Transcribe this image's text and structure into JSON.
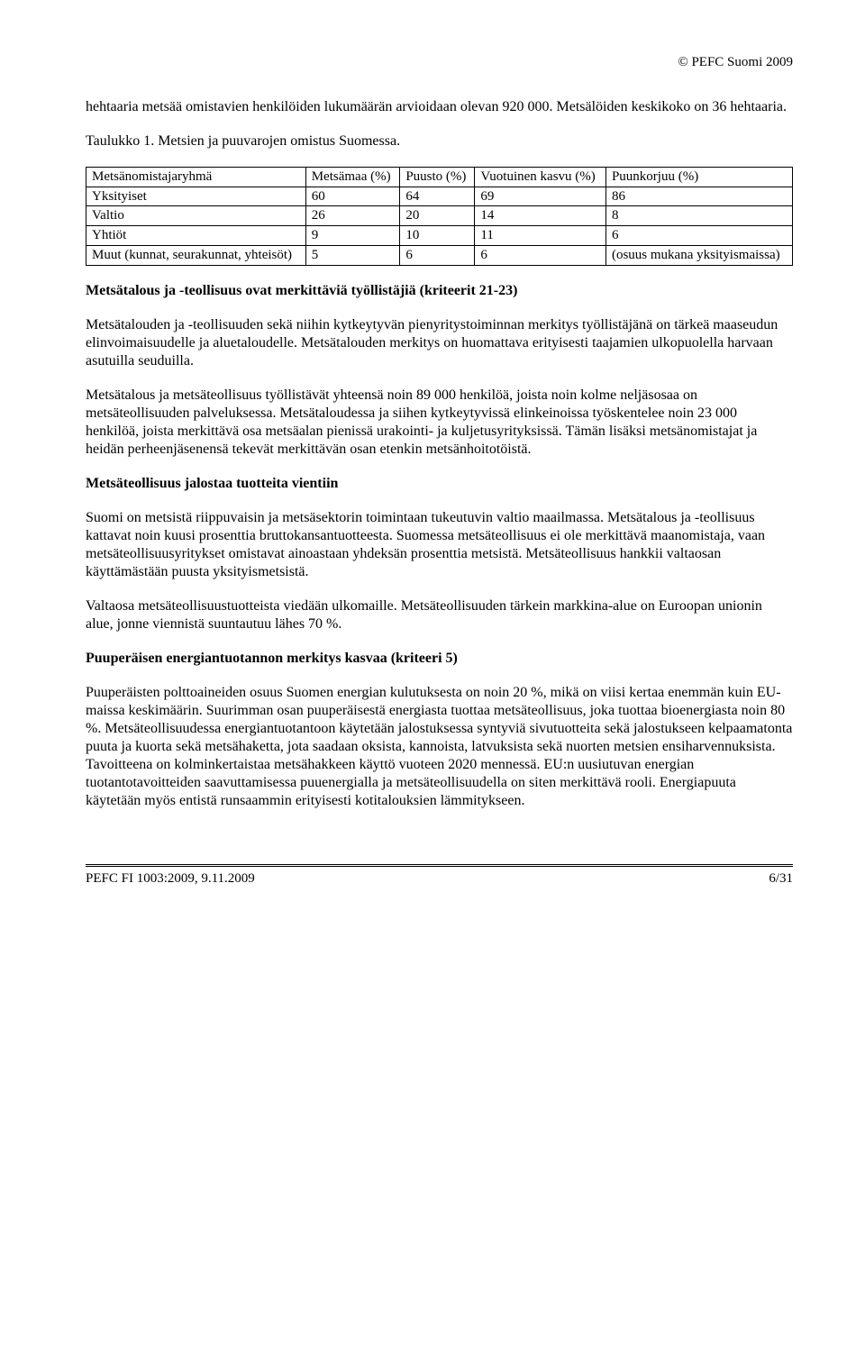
{
  "copyright": "© PEFC Suomi 2009",
  "p1": "hehtaaria metsää omistavien henkilöiden lukumäärän arvioidaan olevan 920 000. Metsälöiden keskikoko on 36 hehtaaria.",
  "tableCaption": "Taulukko 1. Metsien ja puuvarojen omistus Suomessa.",
  "table": {
    "headers": [
      "Metsänomistajaryhmä",
      "Metsämaa (%)",
      "Puusto (%)",
      "Vuotuinen kasvu  (%)",
      "Puunkorjuu (%)"
    ],
    "rows": [
      [
        "Yksityiset",
        "60",
        "64",
        "69",
        "86"
      ],
      [
        "Valtio",
        "26",
        "20",
        "14",
        "8"
      ],
      [
        "Yhtiöt",
        "9",
        "10",
        "11",
        "6"
      ],
      [
        "Muut (kunnat, seurakunnat, yhteisöt)",
        "5",
        "6",
        "6",
        "(osuus mukana yksityismaissa)"
      ]
    ]
  },
  "h1": "Metsätalous ja -teollisuus ovat merkittäviä työllistäjiä (kriteerit 21-23)",
  "p2": "Metsätalouden ja -teollisuuden sekä niihin kytkeytyvän pienyritystoiminnan merkitys työllistäjänä on tärkeä maaseudun elinvoimaisuudelle ja aluetaloudelle. Metsätalouden merkitys on huomattava erityisesti taajamien ulkopuolella harvaan asutuilla seuduilla.",
  "p3": "Metsätalous ja metsäteollisuus työllistävät yhteensä noin 89 000 henkilöä, joista noin kolme neljäsosaa on metsäteollisuuden palveluksessa. Metsätaloudessa ja siihen kytkeytyvissä elinkeinoissa työskentelee noin 23 000 henkilöä, joista merkittävä osa metsäalan pienissä urakointi- ja kuljetusyrityksissä. Tämän lisäksi metsänomistajat ja heidän perheenjäsenensä tekevät merkittävän osan etenkin metsänhoitotöistä.",
  "h2": "Metsäteollisuus jalostaa tuotteita vientiin",
  "p4": "Suomi on metsistä riippuvaisin ja metsäsektorin toimintaan tukeutuvin valtio maailmassa. Metsätalous ja -teollisuus kattavat noin kuusi prosenttia bruttokansantuotteesta. Suomessa metsäteollisuus ei ole merkittävä maanomistaja, vaan metsäteollisuusyritykset omistavat ainoastaan yhdeksän prosenttia metsistä. Metsäteollisuus hankkii valtaosan käyttämästään puusta yksityismetsistä.",
  "p5": "Valtaosa metsäteollisuustuotteista viedään ulkomaille. Metsäteollisuuden tärkein markkina-alue on Euroopan unionin alue, jonne viennistä suuntautuu lähes 70 %.",
  "h3": "Puuperäisen energiantuotannon merkitys kasvaa (kriteeri 5)",
  "p6": "Puuperäisten polttoaineiden osuus Suomen energian kulutuksesta on noin 20 %, mikä on viisi kertaa enemmän kuin EU-maissa keskimäärin. Suurimman osan puuperäisestä energiasta tuottaa metsäteollisuus, joka tuottaa bioenergiasta noin 80 %. Metsäteollisuudessa energiantuotantoon käytetään jalostuksessa syntyviä sivutuotteita sekä jalostukseen kelpaamatonta puuta ja kuorta sekä metsähaketta, jota saadaan oksista, kannoista, latvuksista sekä nuorten metsien ensiharvennuksista. Tavoitteena on kolminkertaistaa metsähakkeen käyttö vuoteen 2020 mennessä. EU:n uusiutuvan energian tuotantotavoitteiden saavuttamisessa puuenergialla ja metsäteollisuudella on siten merkittävä rooli. Energiapuuta käytetään myös entistä runsaammin erityisesti kotitalouksien lämmitykseen.",
  "footerLeft": "PEFC FI 1003:2009, 9.11.2009",
  "footerRight": "6/31"
}
